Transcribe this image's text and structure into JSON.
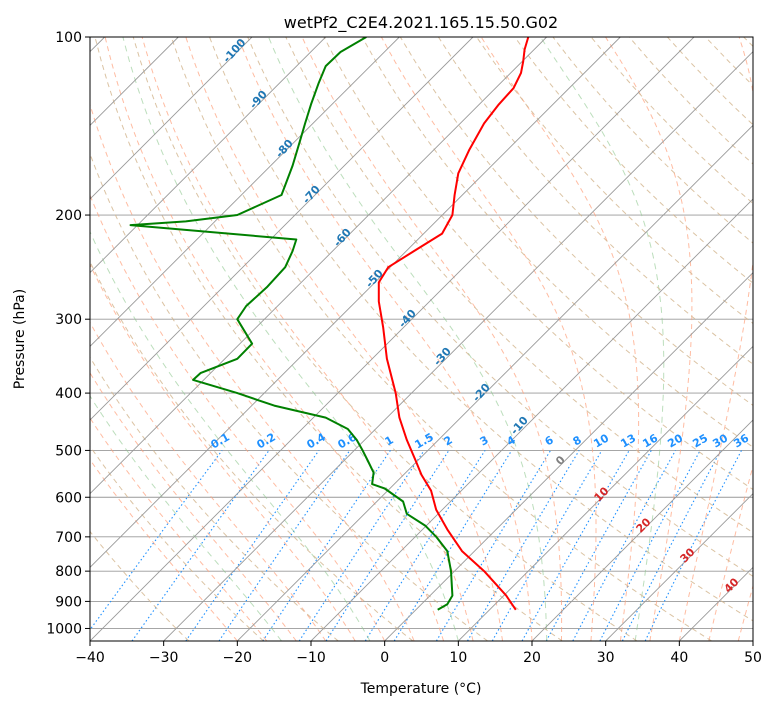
{
  "chart_data": {
    "type": "line",
    "title": "wetPf2_C2E4.2021.165.15.50.G02",
    "xlabel": "Temperature (°C)",
    "ylabel": "Pressure (hPa)",
    "xlim": [
      -40,
      50
    ],
    "ylim": [
      1050,
      100
    ],
    "y_scale": "log",
    "x_ticks": [
      -40,
      -30,
      -20,
      -10,
      0,
      10,
      20,
      30,
      40,
      50
    ],
    "y_ticks": [
      100,
      200,
      300,
      400,
      500,
      600,
      700,
      800,
      900,
      1000
    ],
    "grid": true,
    "colors": {
      "temperature": "#ff0000",
      "dewpoint": "#008000",
      "isotherm": "#999999",
      "dry_adiabat": "#d2b48c",
      "moist_adiabat": "#ffa07a",
      "mixing_ratio": "#1e90ff",
      "moist_label": "#1f77b4",
      "temp_label": "#d62728",
      "zero_label": "#808080"
    },
    "series": [
      {
        "key": "temperature",
        "x": [
          17.8,
          16.5,
          13.5,
          10.5,
          8.5,
          7.0,
          6.3,
          5.0,
          4.2,
          3.0,
          2.0,
          1.5,
          0.3,
          -0.2,
          -0.8,
          -0.8,
          0.5,
          4.0,
          7.8,
          9.2,
          9.5,
          10.0,
          11.5,
          13.5,
          15.5,
          17.5,
          18.5,
          18.8,
          19.0,
          19.5
        ],
        "p": [
          930,
          880,
          800,
          740,
          680,
          630,
          585,
          550,
          520,
          480,
          440,
          400,
          350,
          310,
          280,
          260,
          245,
          230,
          215,
          200,
          185,
          170,
          155,
          140,
          130,
          122,
          115,
          110,
          105,
          100
        ]
      },
      {
        "key": "dewpoint",
        "x": [
          7.2,
          8.5,
          9.2,
          9.0,
          8.5,
          7.0,
          5.5,
          3.0,
          2.5,
          0.0,
          -1.7,
          -1.5,
          -2.3,
          -3.0,
          -3.8,
          -5.0,
          -8.0,
          -15.0,
          -20.0,
          -26.0,
          -25.0,
          -20.0,
          -18.0,
          -20.0,
          -18.8,
          -16.0,
          -13.5,
          -12.5,
          -12.0,
          -34.5,
          -27.0,
          -20.0,
          -14.0,
          -12.5,
          -11.5,
          -10.8,
          -10.0,
          -9.0,
          -8.0,
          -6.0,
          -2.5
        ],
        "p": [
          930,
          910,
          880,
          800,
          740,
          700,
          670,
          640,
          610,
          580,
          570,
          545,
          520,
          500,
          480,
          460,
          440,
          420,
          400,
          380,
          370,
          350,
          330,
          300,
          285,
          265,
          245,
          230,
          220,
          208,
          205,
          200,
          185,
          165,
          150,
          140,
          130,
          120,
          112,
          106,
          100
        ]
      }
    ],
    "moist_adiabat_labels": [
      "-100",
      "-90",
      "-80",
      "-70",
      "-60",
      "-50",
      "-40",
      "-30",
      "-20",
      "-10"
    ],
    "mixing_ratio_labels": [
      "0.1",
      "0.2",
      "0.4",
      "0.6",
      "1",
      "1.5",
      "2",
      "3",
      "4",
      "6",
      "8",
      "10",
      "13",
      "16",
      "20",
      "25",
      "30",
      "36"
    ],
    "temperature_labels": [
      "0",
      "10",
      "20",
      "30",
      "40"
    ]
  }
}
